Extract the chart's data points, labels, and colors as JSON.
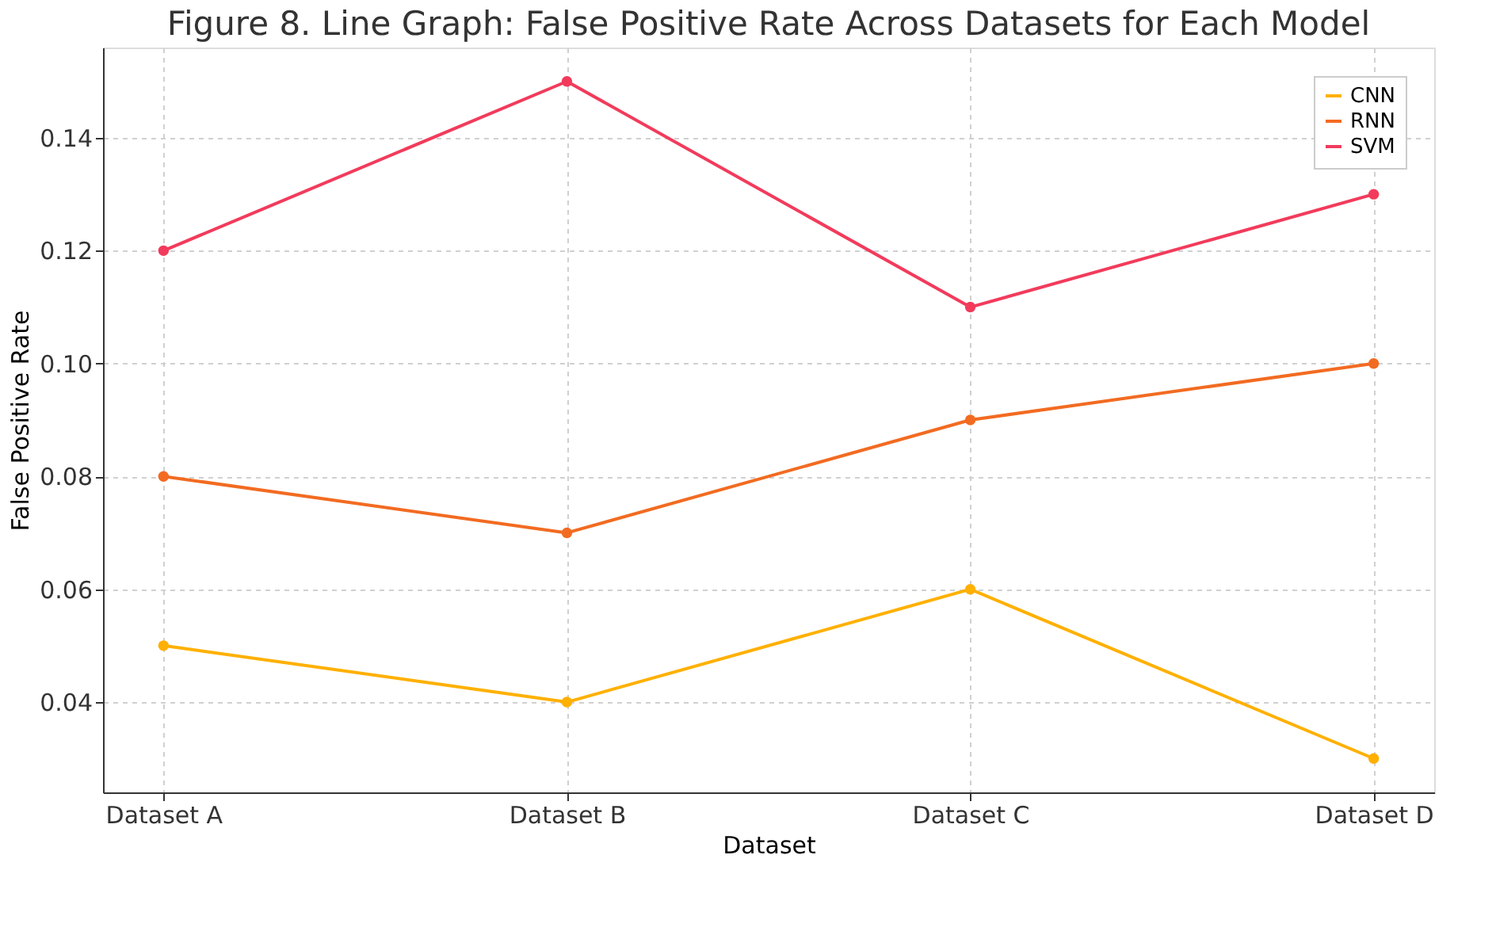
{
  "chart_data": {
    "type": "line",
    "title": "Figure 8. Line Graph: False Positive Rate Across Datasets for Each Model",
    "xlabel": "Dataset",
    "ylabel": "False Positive Rate",
    "categories": [
      "Dataset A",
      "Dataset B",
      "Dataset C",
      "Dataset D"
    ],
    "series": [
      {
        "name": "CNN",
        "color": "#ffb000",
        "values": [
          0.05,
          0.04,
          0.06,
          0.03
        ]
      },
      {
        "name": "RNN",
        "color": "#f26b21",
        "values": [
          0.08,
          0.07,
          0.09,
          0.1
        ]
      },
      {
        "name": "SVM",
        "color": "#f23b5c",
        "values": [
          0.12,
          0.15,
          0.11,
          0.13
        ]
      }
    ],
    "ylim": [
      0.024,
      0.156
    ],
    "yticks": [
      0.04,
      0.06,
      0.08,
      {
        "value": 0.1,
        "label": "0.10"
      },
      0.12,
      0.14
    ],
    "grid": true,
    "legend": "top right",
    "marker": "circle",
    "line_style": "solid"
  }
}
